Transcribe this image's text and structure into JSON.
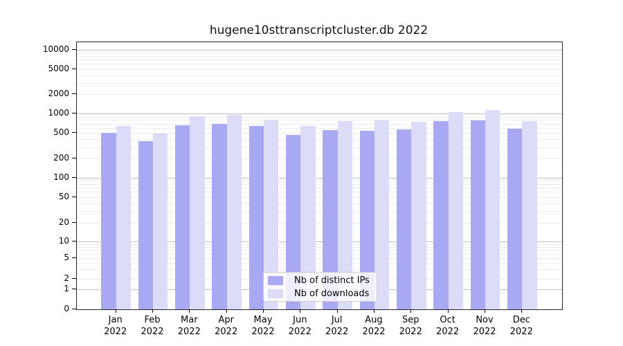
{
  "title": "hugene10sttranscriptcluster.db 2022",
  "chart_data": {
    "type": "bar",
    "scale": "symlog",
    "title": "hugene10sttranscriptcluster.db 2022",
    "categories": [
      "Jan",
      "Feb",
      "Mar",
      "Apr",
      "May",
      "Jun",
      "Jul",
      "Aug",
      "Sep",
      "Oct",
      "Nov",
      "Dec"
    ],
    "x_year": "2022",
    "series": [
      {
        "name": "Nb of distinct IPs",
        "color": "#a8a8f3",
        "values": [
          505,
          370,
          655,
          700,
          645,
          465,
          560,
          540,
          575,
          765,
          790,
          590
        ]
      },
      {
        "name": "Nb of downloads",
        "color": "#dcdcf9",
        "values": [
          640,
          495,
          905,
          955,
          810,
          650,
          770,
          790,
          750,
          1050,
          1150,
          770
        ]
      }
    ],
    "yticks": [
      0,
      1,
      2,
      5,
      10,
      20,
      50,
      100,
      200,
      500,
      1000,
      2000,
      5000,
      10000
    ],
    "ylim": [
      0,
      13000
    ],
    "xlabel": "",
    "ylabel": "",
    "grid": "on",
    "legend_position": "bottom-center",
    "colors": {
      "major_grid": "#bdbdbd",
      "minor_grid": "#ebebeb",
      "spine": "#222222"
    }
  }
}
